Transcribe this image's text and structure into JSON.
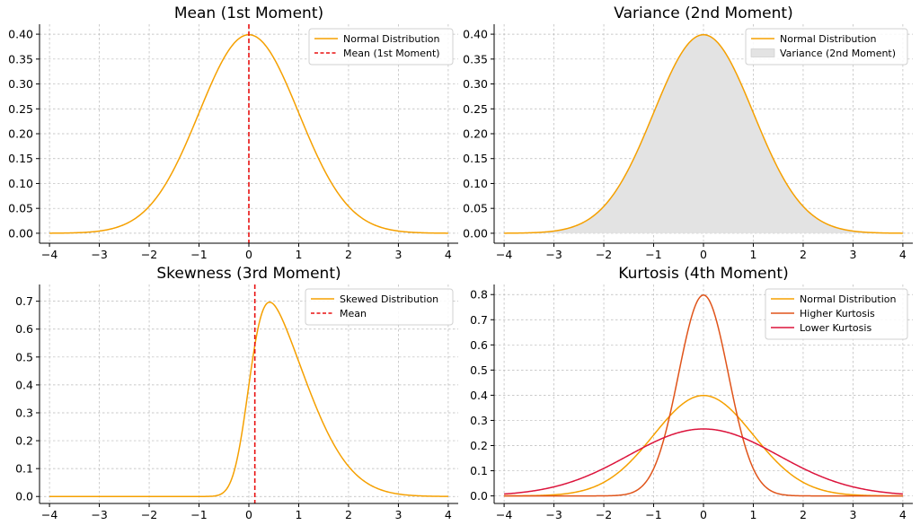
{
  "colors": {
    "orange": "#f5a000",
    "dark_orange": "#e0541a",
    "crimson": "#dc143c",
    "red": "#e81010",
    "fill": "#e3e3e3",
    "grid": "#b8b8b8"
  },
  "chart_data": [
    {
      "type": "line",
      "title": "Mean (1st Moment)",
      "xlim": [
        -4.2,
        4.2
      ],
      "ylim": [
        -0.02,
        0.42
      ],
      "x_ticks": [
        -4,
        -3,
        -2,
        -1,
        0,
        1,
        2,
        3,
        4
      ],
      "x_tick_labels": [
        "−4",
        "−3",
        "−2",
        "−1",
        "0",
        "1",
        "2",
        "3",
        "4"
      ],
      "y_ticks": [
        0,
        0.05,
        0.1,
        0.15,
        0.2,
        0.25,
        0.3,
        0.35,
        0.4
      ],
      "y_tick_labels": [
        "0.00",
        "0.05",
        "0.10",
        "0.15",
        "0.20",
        "0.25",
        "0.30",
        "0.35",
        "0.40"
      ],
      "grid": true,
      "legend_position": "top-right",
      "series": [
        {
          "name": "Normal Distribution",
          "kind": "normal",
          "mu": 0,
          "sigma": 1,
          "color": "#f5a000",
          "style": "solid"
        },
        {
          "name": "Mean (1st Moment)",
          "kind": "vline",
          "x": 0,
          "color": "#e81010",
          "style": "dashed"
        }
      ]
    },
    {
      "type": "area",
      "title": "Variance (2nd Moment)",
      "xlim": [
        -4.2,
        4.2
      ],
      "ylim": [
        -0.02,
        0.42
      ],
      "x_ticks": [
        -4,
        -3,
        -2,
        -1,
        0,
        1,
        2,
        3,
        4
      ],
      "x_tick_labels": [
        "−4",
        "−3",
        "−2",
        "−1",
        "0",
        "1",
        "2",
        "3",
        "4"
      ],
      "y_ticks": [
        0,
        0.05,
        0.1,
        0.15,
        0.2,
        0.25,
        0.3,
        0.35,
        0.4
      ],
      "y_tick_labels": [
        "0.00",
        "0.05",
        "0.10",
        "0.15",
        "0.20",
        "0.25",
        "0.30",
        "0.35",
        "0.40"
      ],
      "grid": true,
      "legend_position": "top-right",
      "series": [
        {
          "name": "Normal Distribution",
          "kind": "normal",
          "mu": 0,
          "sigma": 1,
          "color": "#f5a000",
          "style": "solid"
        },
        {
          "name": "Variance (2nd Moment)",
          "kind": "fill",
          "mu": 0,
          "sigma": 1,
          "color": "#e3e3e3",
          "style": "fill"
        }
      ]
    },
    {
      "type": "line",
      "title": "Skewness (3rd Moment)",
      "xlim": [
        -4.2,
        4.2
      ],
      "ylim": [
        -0.025,
        0.76
      ],
      "x_ticks": [
        -4,
        -3,
        -2,
        -1,
        0,
        1,
        2,
        3,
        4
      ],
      "x_tick_labels": [
        "−4",
        "−3",
        "−2",
        "−1",
        "0",
        "1",
        "2",
        "3",
        "4"
      ],
      "y_ticks": [
        0,
        0.1,
        0.2,
        0.3,
        0.4,
        0.5,
        0.6,
        0.7
      ],
      "y_tick_labels": [
        "0.0",
        "0.1",
        "0.2",
        "0.3",
        "0.4",
        "0.5",
        "0.6",
        "0.7"
      ],
      "grid": true,
      "legend_position": "top-right",
      "series": [
        {
          "name": "Skewed Distribution",
          "kind": "skewnormal",
          "alpha": 4,
          "color": "#f5a000",
          "style": "solid"
        },
        {
          "name": "Mean",
          "kind": "vline",
          "x": 0.12,
          "color": "#e81010",
          "style": "dashed"
        }
      ]
    },
    {
      "type": "line",
      "title": "Kurtosis (4th Moment)",
      "xlim": [
        -4.2,
        4.2
      ],
      "ylim": [
        -0.03,
        0.84
      ],
      "x_ticks": [
        -4,
        -3,
        -2,
        -1,
        0,
        1,
        2,
        3,
        4
      ],
      "x_tick_labels": [
        "−4",
        "−3",
        "−2",
        "−1",
        "0",
        "1",
        "2",
        "3",
        "4"
      ],
      "y_ticks": [
        0,
        0.1,
        0.2,
        0.3,
        0.4,
        0.5,
        0.6,
        0.7,
        0.8
      ],
      "y_tick_labels": [
        "0.0",
        "0.1",
        "0.2",
        "0.3",
        "0.4",
        "0.5",
        "0.6",
        "0.7",
        "0.8"
      ],
      "grid": true,
      "legend_position": "top-right",
      "series": [
        {
          "name": "Normal Distribution",
          "kind": "normal",
          "mu": 0,
          "sigma": 1,
          "color": "#f5a000",
          "style": "solid"
        },
        {
          "name": "Higher Kurtosis",
          "kind": "normal",
          "mu": 0,
          "sigma": 0.5,
          "color": "#e0541a",
          "style": "solid"
        },
        {
          "name": "Lower Kurtosis",
          "kind": "normal",
          "mu": 0,
          "sigma": 1.5,
          "color": "#dc143c",
          "style": "solid"
        }
      ]
    }
  ]
}
